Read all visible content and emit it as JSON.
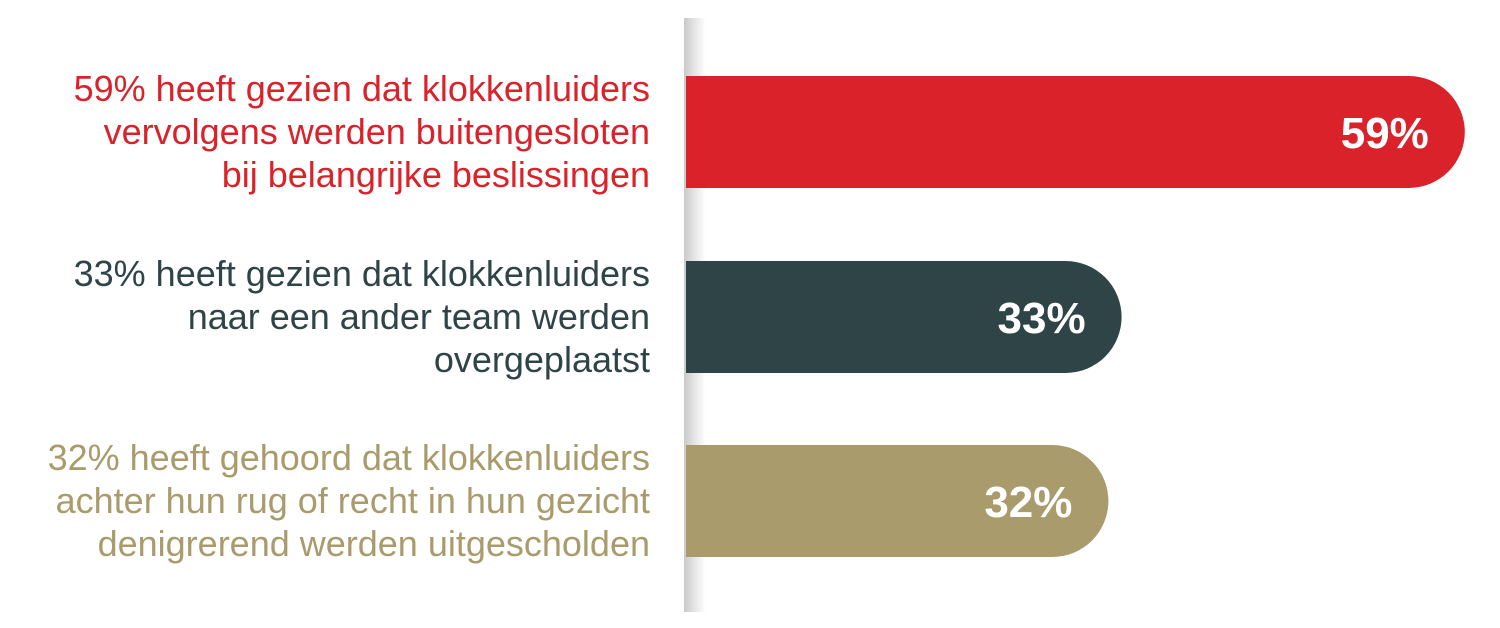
{
  "chart_data": {
    "type": "bar",
    "orientation": "horizontal",
    "categories": [
      [
        "59% heeft gezien dat klokkenluiders",
        "vervolgens werden buitengesloten",
        "bij belangrijke beslissingen"
      ],
      [
        "33% heeft gezien dat klokkenluiders",
        "naar een ander team werden",
        "overgeplaatst"
      ],
      [
        "32% heeft gehoord dat klokkenluiders",
        "achter hun rug of recht in hun gezicht",
        "denigrerend werden uitgescholden"
      ]
    ],
    "values": [
      59,
      33,
      32
    ],
    "value_labels": [
      "59%",
      "33%",
      "32%"
    ],
    "unit": "%",
    "colors": [
      "#d9222a",
      "#2f4446",
      "#a99b6b"
    ],
    "xlim": [
      0,
      100
    ],
    "grid": false,
    "legend": "none"
  }
}
